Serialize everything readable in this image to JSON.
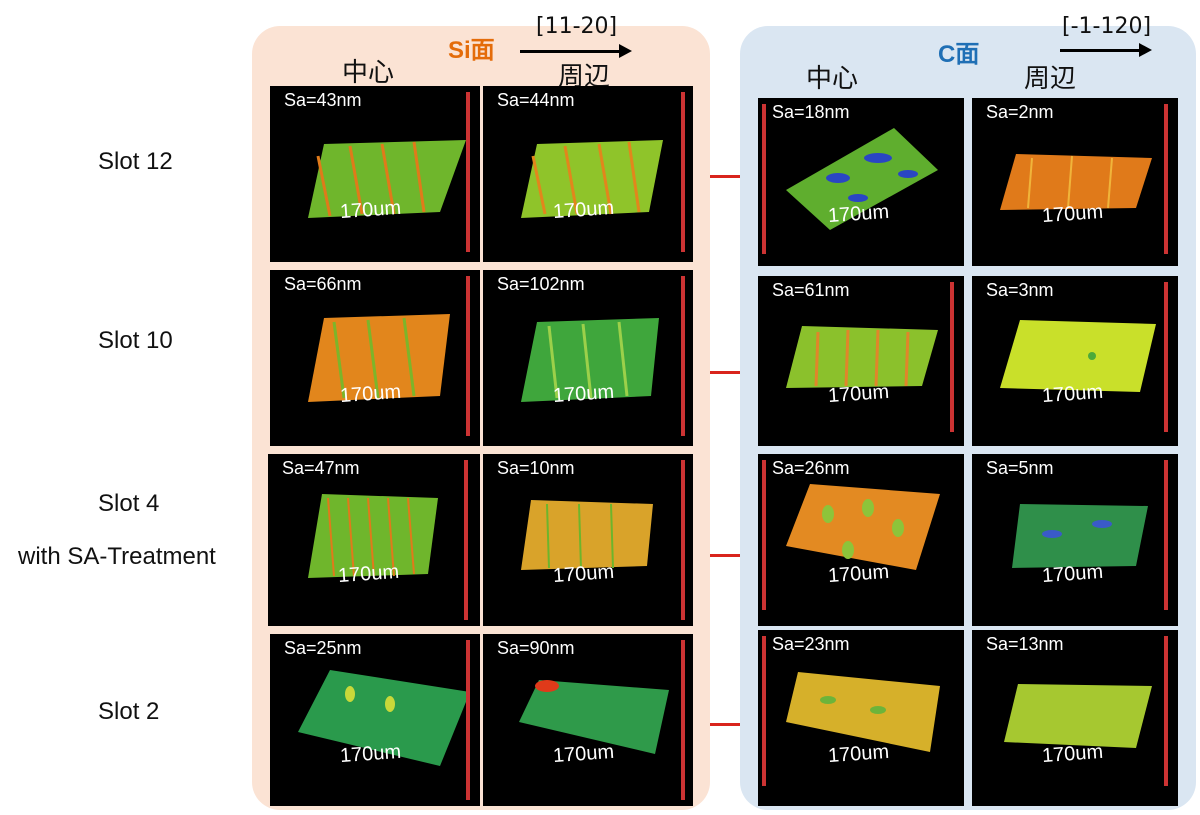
{
  "si_face": {
    "title": "Si面",
    "direction": "[11-20]",
    "col_center": "中心",
    "col_edge": "周辺"
  },
  "c_face": {
    "title": "C面",
    "direction": "[-1-120]",
    "col_center": "中心",
    "col_edge": "周辺"
  },
  "rows": [
    {
      "label": "Slot 12",
      "si_center": "Sa=43nm",
      "si_edge": "Sa=44nm",
      "c_center": "Sa=18nm",
      "c_edge": "Sa=2nm"
    },
    {
      "label": "Slot 10",
      "si_center": "Sa=66nm",
      "si_edge": "Sa=102nm",
      "c_center": "Sa=61nm",
      "c_edge": "Sa=3nm"
    },
    {
      "label": "Slot 4",
      "sublabel": "with SA-Treatment",
      "si_center": "Sa=47nm",
      "si_edge": "Sa=10nm",
      "c_center": "Sa=26nm",
      "c_edge": "Sa=5nm"
    },
    {
      "label": "Slot 2",
      "si_center": "Sa=25nm",
      "si_edge": "Sa=90nm",
      "c_center": "Sa=23nm",
      "c_edge": "Sa=13nm"
    }
  ],
  "scan_size": "170um",
  "colors": {
    "si_panel": "#fbe3d4",
    "c_panel": "#dae6f2",
    "si_title": "#e46c0a",
    "c_title": "#1f6fb5",
    "connector": "#d9241c"
  }
}
